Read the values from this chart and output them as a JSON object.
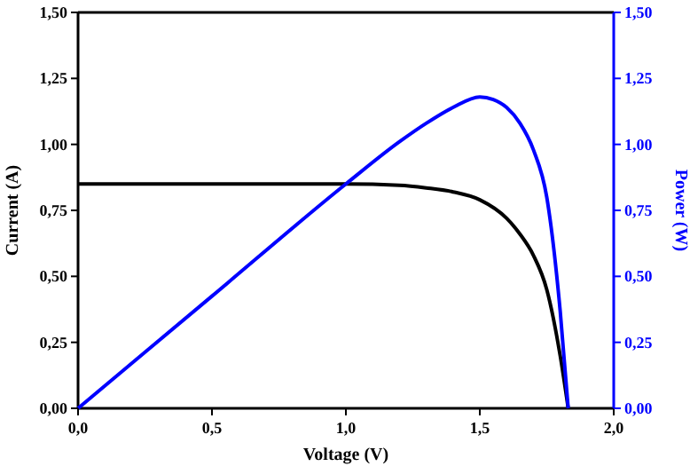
{
  "chart_data": {
    "type": "line",
    "xlabel": "Voltage (V)",
    "ylabel": "Current (A)",
    "y2label": "Power (W)",
    "xlim": [
      0,
      2
    ],
    "xticks": [
      {
        "value": 0,
        "label": "0,0"
      },
      {
        "value": 0.5,
        "label": "0,5"
      },
      {
        "value": 1,
        "label": "1,0"
      },
      {
        "value": 1.5,
        "label": "1,5"
      },
      {
        "value": 2,
        "label": "2,0"
      }
    ],
    "ylim": [
      0,
      1.5
    ],
    "yticks": [
      {
        "value": 0,
        "label": "0,00"
      },
      {
        "value": 0.25,
        "label": "0,25"
      },
      {
        "value": 0.5,
        "label": "0,50"
      },
      {
        "value": 0.75,
        "label": "0,75"
      },
      {
        "value": 1,
        "label": "1,00"
      },
      {
        "value": 1.25,
        "label": "1,25"
      },
      {
        "value": 1.5,
        "label": "1,50"
      }
    ],
    "y2lim": [
      0,
      1.5
    ],
    "y2ticks": [
      {
        "value": 0,
        "label": "0,00"
      },
      {
        "value": 0.25,
        "label": "0,25"
      },
      {
        "value": 0.5,
        "label": "0,50"
      },
      {
        "value": 0.75,
        "label": "0,75"
      },
      {
        "value": 1,
        "label": "1,00"
      },
      {
        "value": 1.25,
        "label": "1,25"
      },
      {
        "value": 1.5,
        "label": "1,50"
      }
    ],
    "grid": false,
    "line_style": "solid",
    "series": [
      {
        "color": "#000000",
        "x": [
          0,
          0.5,
          1,
          1.2,
          1.3,
          1.4,
          1.5,
          1.6,
          1.65,
          1.7,
          1.75,
          1.8,
          1.83
        ],
        "values": [
          0.85,
          0.85,
          0.85,
          0.845,
          0.835,
          0.82,
          0.79,
          0.72,
          0.66,
          0.58,
          0.45,
          0.2,
          0
        ]
      },
      {
        "color": "#0000ff",
        "axis": "y2",
        "x": [
          0,
          0.5,
          1,
          1.2,
          1.3,
          1.4,
          1.5,
          1.55,
          1.6,
          1.65,
          1.7,
          1.75,
          1.8,
          1.83
        ],
        "values": [
          0,
          0.425,
          0.85,
          1.01,
          1.08,
          1.14,
          1.18,
          1.17,
          1.14,
          1.08,
          0.98,
          0.8,
          0.37,
          0
        ]
      }
    ]
  }
}
